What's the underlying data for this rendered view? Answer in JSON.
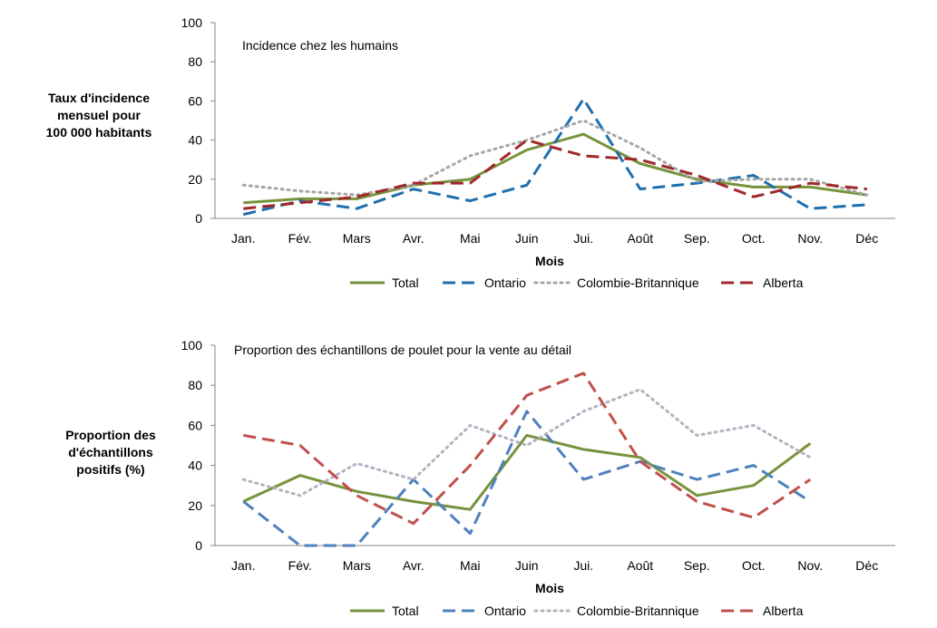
{
  "chart_data": [
    {
      "type": "line",
      "title": "Incidence chez les humains",
      "ylabel": [
        "Taux d'incidence",
        "mensuel pour",
        "100 000 habitants"
      ],
      "xlabel": "Mois",
      "ylim": [
        0,
        100
      ],
      "yticks": [
        0,
        20,
        40,
        60,
        80,
        100
      ],
      "categories": [
        "Jan.",
        "Fév.",
        "Mars",
        "Avr.",
        "Mai",
        "Juin",
        "Jui.",
        "Août",
        "Sep.",
        "Oct.",
        "Nov.",
        "Déc"
      ],
      "legend_position": "bottom",
      "series": [
        {
          "name": "Total",
          "color": "#77933c",
          "style": "solid",
          "values": [
            8,
            10,
            10,
            17,
            20,
            35,
            43,
            28,
            20,
            16,
            16,
            12
          ]
        },
        {
          "name": "Ontario",
          "color": "#1f6fad",
          "style": "dashed",
          "values": [
            2,
            9,
            5,
            15,
            9,
            17,
            61,
            15,
            18,
            22,
            5,
            7
          ]
        },
        {
          "name": "Colombie-Britannique",
          "color": "#a6a6a6",
          "style": "dotted",
          "values": [
            17,
            14,
            12,
            17,
            32,
            40,
            50,
            36,
            19,
            20,
            20,
            12
          ]
        },
        {
          "name": "Alberta",
          "color": "#a0282c",
          "style": "dashed",
          "values": [
            5,
            8,
            11,
            18,
            18,
            40,
            32,
            30,
            22,
            11,
            18,
            15
          ]
        }
      ]
    },
    {
      "type": "line",
      "title": "Proportion des échantillons de poulet pour la vente au détail",
      "ylabel": [
        "Proportion des",
        "d'échantillons",
        "positifs (%)"
      ],
      "xlabel": "Mois",
      "ylim": [
        0,
        100
      ],
      "yticks": [
        0,
        20,
        40,
        60,
        80,
        100
      ],
      "categories": [
        "Jan.",
        "Fév.",
        "Mars",
        "Avr.",
        "Mai",
        "Juin",
        "Jui.",
        "Août",
        "Sep.",
        "Oct.",
        "Nov.",
        "Déc"
      ],
      "legend_position": "bottom",
      "series": [
        {
          "name": "Total",
          "color": "#77933c",
          "style": "solid",
          "values": [
            22,
            35,
            27,
            22,
            18,
            55,
            48,
            44,
            25,
            30,
            51,
            null
          ]
        },
        {
          "name": "Ontario",
          "color": "#4f81bd",
          "style": "dashed",
          "values": [
            22,
            0,
            0,
            33,
            6,
            67,
            33,
            42,
            33,
            40,
            22,
            null
          ]
        },
        {
          "name": "Colombie-Britannique",
          "color": "#b7b0c0",
          "style": "dotted",
          "values": [
            33,
            25,
            41,
            33,
            60,
            50,
            67,
            78,
            55,
            60,
            44,
            null
          ]
        },
        {
          "name": "Alberta",
          "color": "#c0504d",
          "style": "dashed",
          "values": [
            55,
            50,
            25,
            11,
            40,
            75,
            86,
            42,
            22,
            14,
            33,
            null
          ]
        }
      ]
    }
  ]
}
